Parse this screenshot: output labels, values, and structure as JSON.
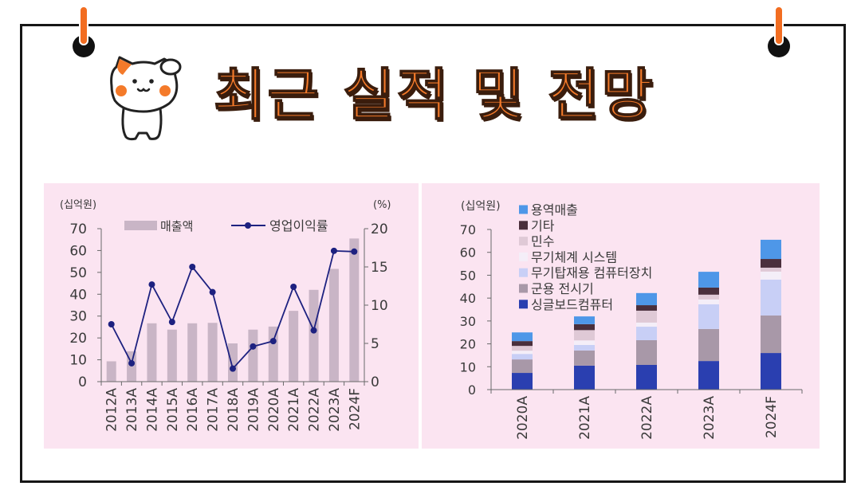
{
  "slide": {
    "title": "최근 실적 및 전망",
    "accent_color": "#f47a2a",
    "panel_color": "#fbe4f1"
  },
  "icons": {
    "pins": [
      "pushpin-icon",
      "pushpin-icon"
    ],
    "mascot": "cat-mascot-icon"
  },
  "chart_data": [
    {
      "type": "bar",
      "ylabel": "(십억원)",
      "y2label": "(%)",
      "categories": [
        "2012A",
        "2013A",
        "2014A",
        "2015A",
        "2016A",
        "2017A",
        "2018A",
        "2019A",
        "2020A",
        "2021A",
        "2022A",
        "2023A",
        "2024F"
      ],
      "series": [
        {
          "name": "매출액",
          "type": "bar",
          "axis": "left",
          "color": "#c9b5c6",
          "values": [
            9.3,
            13.9,
            26.7,
            23.8,
            26.7,
            26.9,
            17.5,
            23.8,
            25.2,
            32.4,
            42.0,
            51.6,
            65.5
          ]
        },
        {
          "name": "영업이익률",
          "type": "line",
          "axis": "right",
          "color": "#1d2180",
          "values": [
            7.5,
            2.4,
            12.7,
            7.8,
            15.0,
            11.7,
            1.7,
            4.6,
            5.3,
            12.4,
            6.7,
            17.1,
            17.0
          ]
        }
      ],
      "ylim": [
        0,
        70
      ],
      "yticks": [
        0,
        10,
        20,
        30,
        40,
        50,
        60,
        70
      ],
      "y2lim": [
        0,
        20
      ],
      "y2ticks": [
        0,
        5,
        10,
        15,
        20
      ],
      "legend": "top",
      "grid": false
    },
    {
      "type": "bar",
      "stacked": true,
      "ylabel": "(십억원)",
      "categories": [
        "2020A",
        "2021A",
        "2022A",
        "2023A",
        "2024F"
      ],
      "series": [
        {
          "name": "싱글보드컴퓨터",
          "color": "#2a3fb0",
          "values": [
            7.3,
            10.5,
            10.8,
            12.5,
            16.0
          ]
        },
        {
          "name": "군용 전시기",
          "color": "#a898a8",
          "values": [
            5.9,
            6.6,
            10.8,
            14.0,
            16.4
          ]
        },
        {
          "name": "무기탑재용 컴퓨터장치",
          "color": "#c8cff6",
          "values": [
            2.4,
            2.4,
            5.9,
            10.8,
            15.7
          ]
        },
        {
          "name": "무기체계 시스템",
          "color": "#f4eef8",
          "values": [
            1.4,
            2.0,
            1.8,
            2.1,
            3.5
          ]
        },
        {
          "name": "민수",
          "color": "#dfc9d6",
          "values": [
            2.1,
            4.5,
            5.2,
            2.1,
            1.7
          ]
        },
        {
          "name": "기타",
          "color": "#4a2f3c",
          "values": [
            2.1,
            2.6,
            2.4,
            3.1,
            3.8
          ]
        },
        {
          "name": "용역매출",
          "color": "#4e97e8",
          "values": [
            3.8,
            3.4,
            5.3,
            6.9,
            8.4
          ]
        }
      ],
      "ylim": [
        0,
        70
      ],
      "yticks": [
        0,
        10,
        20,
        30,
        40,
        50,
        60,
        70
      ],
      "legend": "top-left",
      "grid": false
    }
  ]
}
